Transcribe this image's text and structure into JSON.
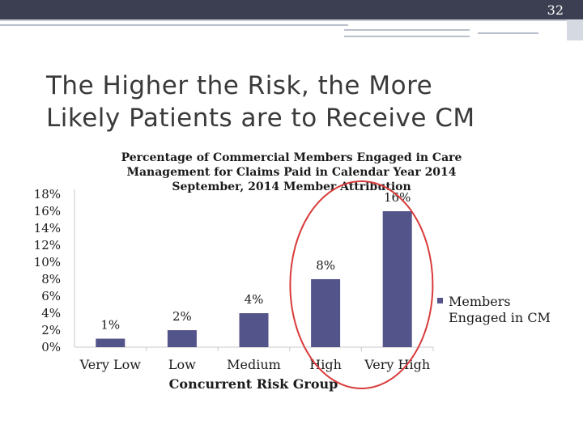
{
  "slide": {
    "page_number": "32",
    "title_line1": "The Higher the Risk, the More",
    "title_line2": "Likely Patients are to Receive CM"
  },
  "colors": {
    "bar": "#53548a",
    "circle": "#d93b3b",
    "top_bar": "#3c3f51"
  },
  "chart_data": {
    "type": "bar",
    "title": [
      "Percentage of Commercial Members Engaged in Care",
      "Management for Claims Paid in Calendar Year 2014",
      "September, 2014 Member Attribution"
    ],
    "xlabel": "Concurrent Risk Group",
    "ylabel": "",
    "categories": [
      "Very Low",
      "Low",
      "Medium",
      "High",
      "Very High"
    ],
    "series": [
      {
        "name": "Members Engaged in CM",
        "values": [
          1,
          2,
          4,
          8,
          16
        ]
      }
    ],
    "data_labels": [
      "1%",
      "2%",
      "4%",
      "8%",
      "16%"
    ],
    "ylim": [
      0,
      18
    ],
    "yticks": [
      "0%",
      "2%",
      "4%",
      "6%",
      "8%",
      "10%",
      "12%",
      "14%",
      "16%",
      "18%"
    ],
    "grid": false,
    "legend": "right",
    "legend_lines": [
      "Members",
      "Engaged in CM"
    ],
    "annotation": "red ellipse circling the High and Very High bars"
  }
}
